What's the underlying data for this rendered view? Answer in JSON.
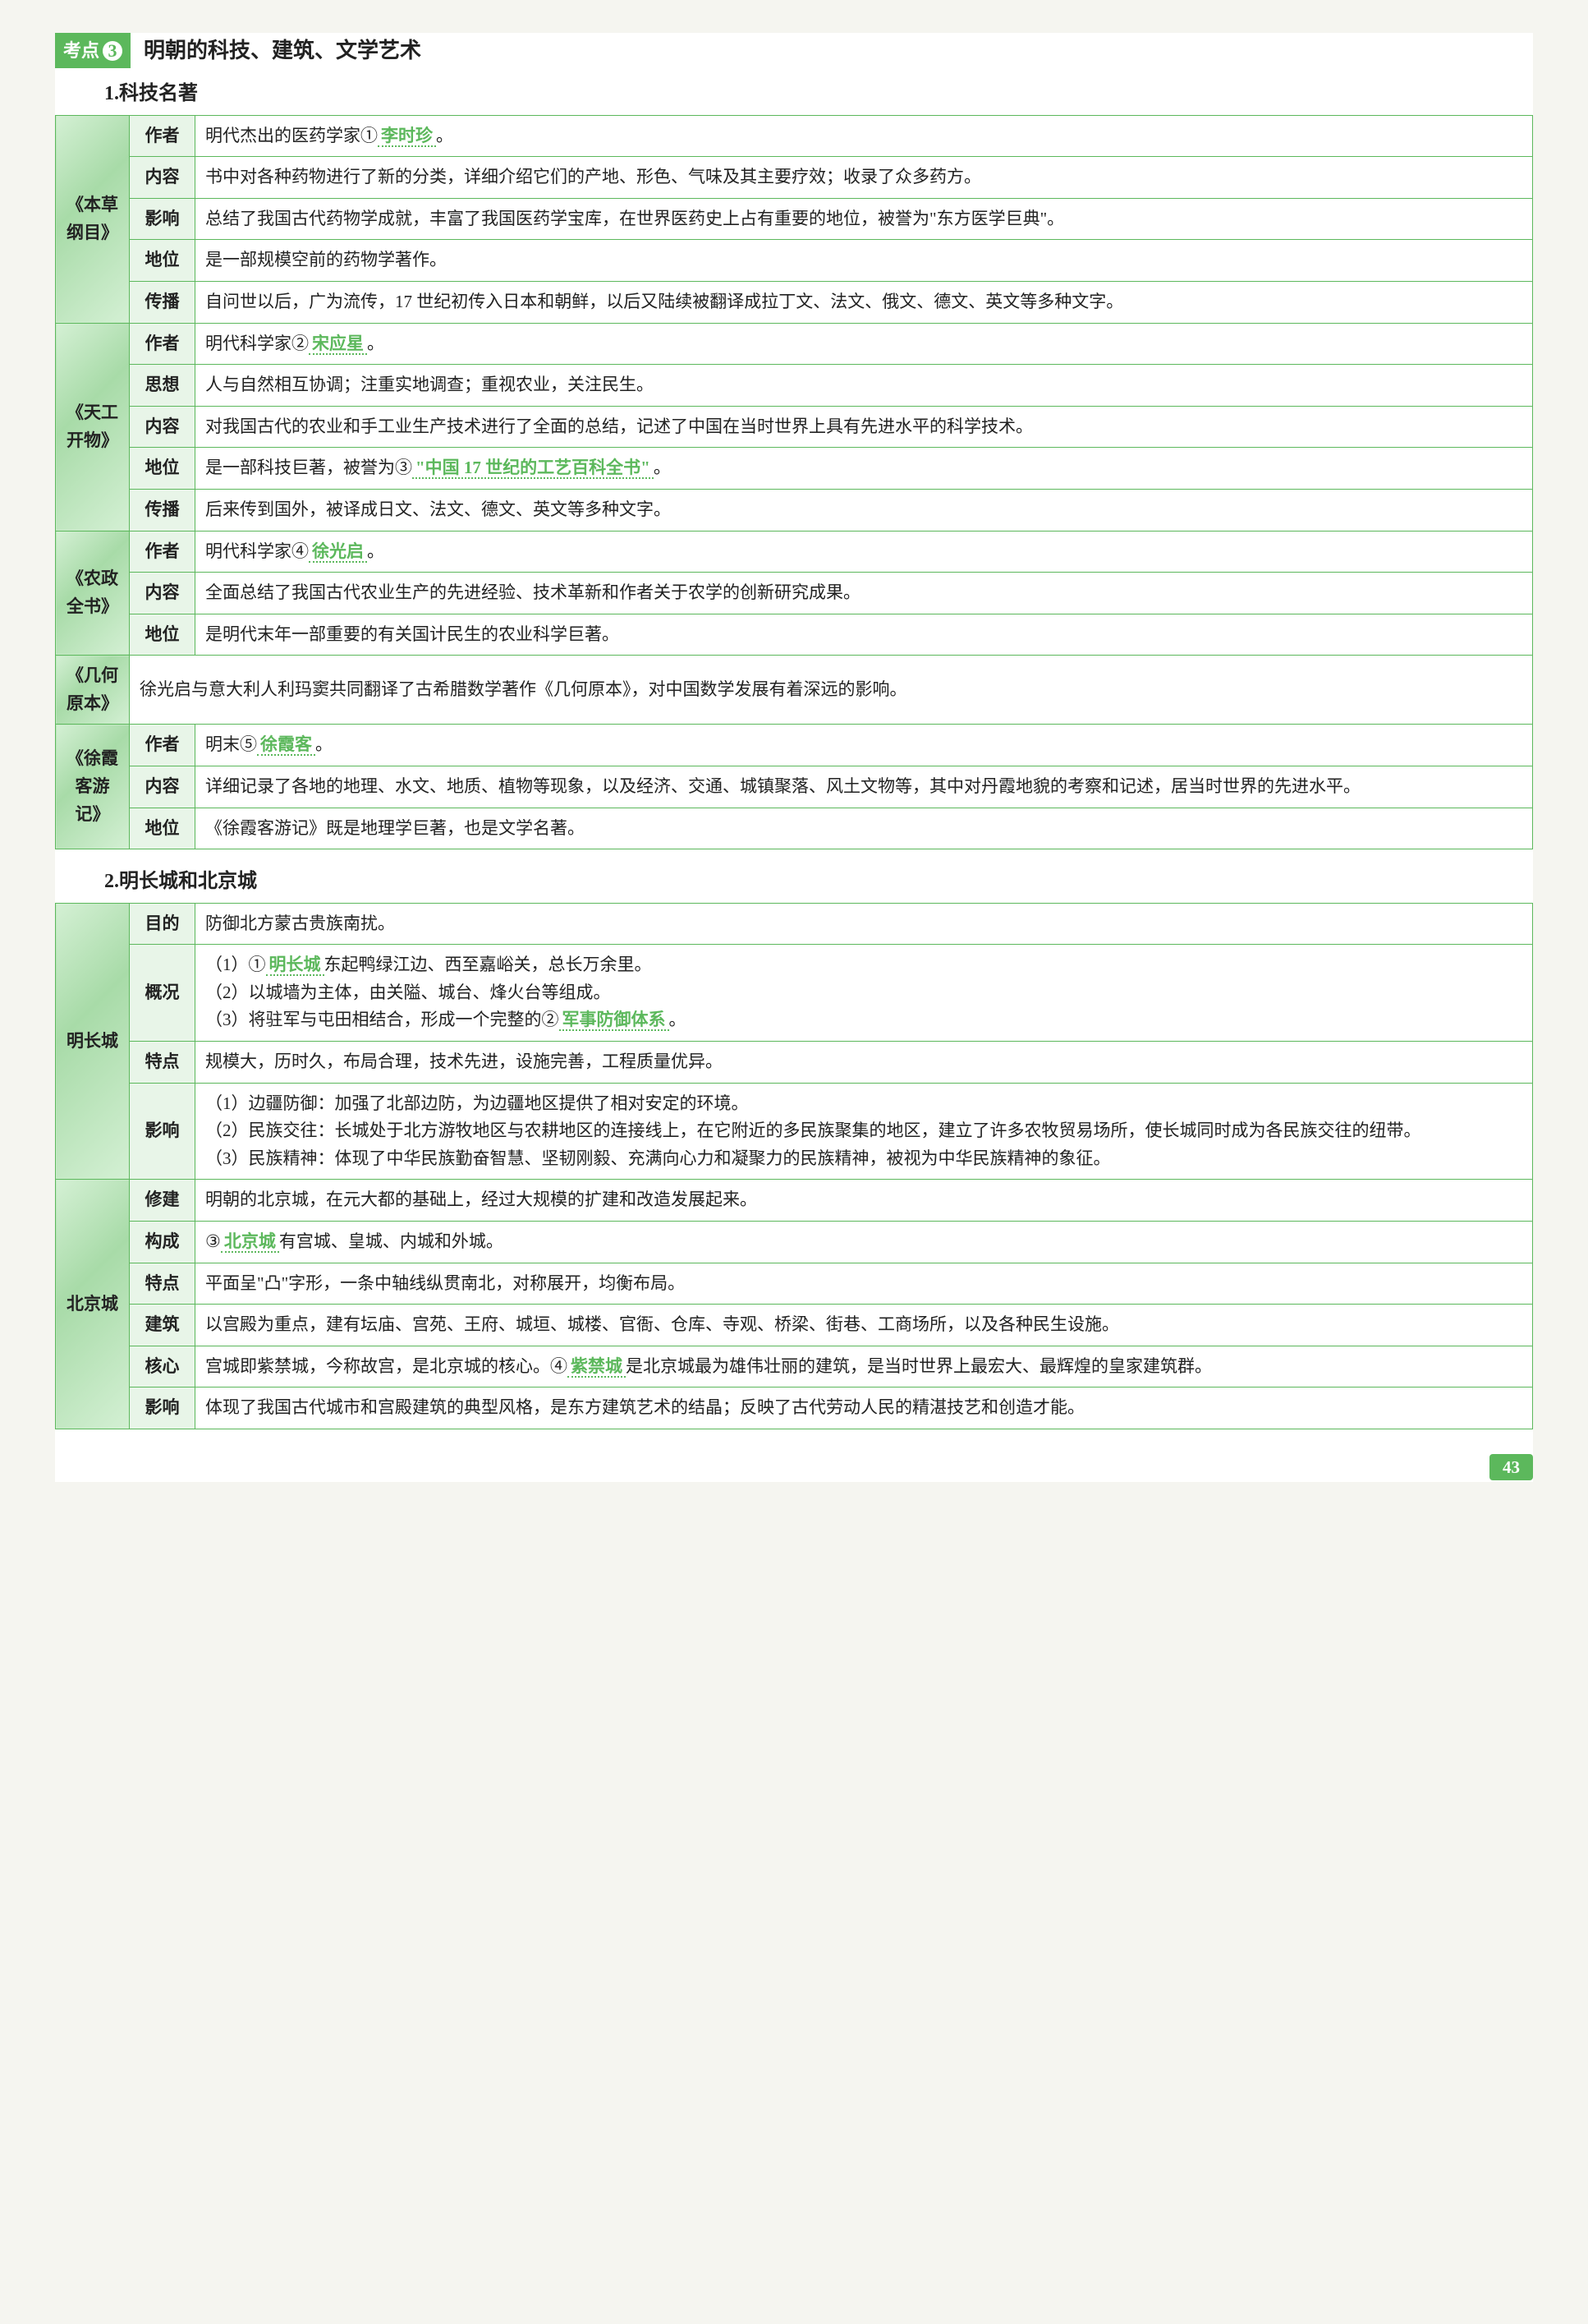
{
  "kaodian": {
    "badge": "考点",
    "num": "3",
    "title": "明朝的科技、建筑、文学艺术"
  },
  "sub1_title": "1.科技名著",
  "t1": {
    "r1": {
      "book": "《本草纲目》",
      "l": "作者",
      "c": "明代杰出的医药学家①",
      "b": "李时珍",
      "a": "。"
    },
    "r2": {
      "l": "内容",
      "c": "书中对各种药物进行了新的分类，详细介绍它们的产地、形色、气味及其主要疗效；收录了众多药方。"
    },
    "r3": {
      "l": "影响",
      "c": "总结了我国古代药物学成就，丰富了我国医药学宝库，在世界医药史上占有重要的地位，被誉为\"东方医学巨典\"。"
    },
    "r4": {
      "l": "地位",
      "c": "是一部规模空前的药物学著作。"
    },
    "r5": {
      "l": "传播",
      "c": "自问世以后，广为流传，17 世纪初传入日本和朝鲜，以后又陆续被翻译成拉丁文、法文、俄文、德文、英文等多种文字。"
    },
    "r6": {
      "book": "《天工开物》",
      "l": "作者",
      "c": "明代科学家②",
      "b": "宋应星",
      "a": "。"
    },
    "r7": {
      "l": "思想",
      "c": "人与自然相互协调；注重实地调查；重视农业，关注民生。"
    },
    "r8": {
      "l": "内容",
      "c": "对我国古代的农业和手工业生产技术进行了全面的总结，记述了中国在当时世界上具有先进水平的科学技术。"
    },
    "r9": {
      "l": "地位",
      "c": "是一部科技巨著，被誉为③",
      "b": "\"中国 17 世纪的工艺百科全书\"",
      "a": "。"
    },
    "r10": {
      "l": "传播",
      "c": "后来传到国外，被译成日文、法文、德文、英文等多种文字。"
    },
    "r11": {
      "book": "《农政全书》",
      "l": "作者",
      "c": "明代科学家④",
      "b": "徐光启",
      "a": "。"
    },
    "r12": {
      "l": "内容",
      "c": "全面总结了我国古代农业生产的先进经验、技术革新和作者关于农学的创新研究成果。"
    },
    "r13": {
      "l": "地位",
      "c": "是明代末年一部重要的有关国计民生的农业科学巨著。"
    },
    "r14": {
      "book": "《几何原本》",
      "c": "徐光启与意大利人利玛窦共同翻译了古希腊数学著作《几何原本》，对中国数学发展有着深远的影响。"
    },
    "r15": {
      "book": "《徐霞客游记》",
      "l": "作者",
      "c": "明末⑤",
      "b": "徐霞客",
      "a": "。"
    },
    "r16": {
      "l": "内容",
      "c": "详细记录了各地的地理、水文、地质、植物等现象，以及经济、交通、城镇聚落、风土文物等，其中对丹霞地貌的考察和记述，居当时世界的先进水平。"
    },
    "r17": {
      "l": "地位",
      "c": "《徐霞客游记》既是地理学巨著，也是文学名著。"
    }
  },
  "sub2_title": "2.明长城和北京城",
  "t2": {
    "r1": {
      "book": "明长城",
      "l": "目的",
      "c": "防御北方蒙古贵族南扰。"
    },
    "r2": {
      "l": "概况",
      "c1": "（1）①",
      "b1": "明长城",
      "c2": "东起鸭绿江边、西至嘉峪关，总长万余里。",
      "c3": "（2）以城墙为主体，由关隘、城台、烽火台等组成。",
      "c4": "（3）将驻军与屯田相结合，形成一个完整的②",
      "b2": "军事防御体系",
      "c5": "。"
    },
    "r3": {
      "l": "特点",
      "c": "规模大，历时久，布局合理，技术先进，设施完善，工程质量优异。"
    },
    "r4": {
      "l": "影响",
      "c1": "（1）边疆防御：加强了北部边防，为边疆地区提供了相对安定的环境。",
      "c2": "（2）民族交往：长城处于北方游牧地区与农耕地区的连接线上，在它附近的多民族聚集的地区，建立了许多农牧贸易场所，使长城同时成为各民族交往的纽带。",
      "c3": "（3）民族精神：体现了中华民族勤奋智慧、坚韧刚毅、充满向心力和凝聚力的民族精神，被视为中华民族精神的象征。"
    },
    "r5": {
      "book": "北京城",
      "l": "修建",
      "c": "明朝的北京城，在元大都的基础上，经过大规模的扩建和改造发展起来。"
    },
    "r6": {
      "l": "构成",
      "c1": "③",
      "b": "北京城",
      "c2": "有宫城、皇城、内城和外城。"
    },
    "r7": {
      "l": "特点",
      "c": "平面呈\"凸\"字形，一条中轴线纵贯南北，对称展开，均衡布局。"
    },
    "r8": {
      "l": "建筑",
      "c": "以宫殿为重点，建有坛庙、宫苑、王府、城垣、城楼、官衙、仓库、寺观、桥梁、街巷、工商场所，以及各种民生设施。"
    },
    "r9": {
      "l": "核心",
      "c1": "宫城即紫禁城，今称故宫，是北京城的核心。④",
      "b": "紫禁城",
      "c2": "是北京城最为雄伟壮丽的建筑，是当时世界上最宏大、最辉煌的皇家建筑群。"
    },
    "r10": {
      "l": "影响",
      "c": "体现了我国古代城市和宫殿建筑的典型风格，是东方建筑艺术的结晶；反映了古代劳动人民的精湛技艺和创造才能。"
    }
  },
  "page_number": "43"
}
